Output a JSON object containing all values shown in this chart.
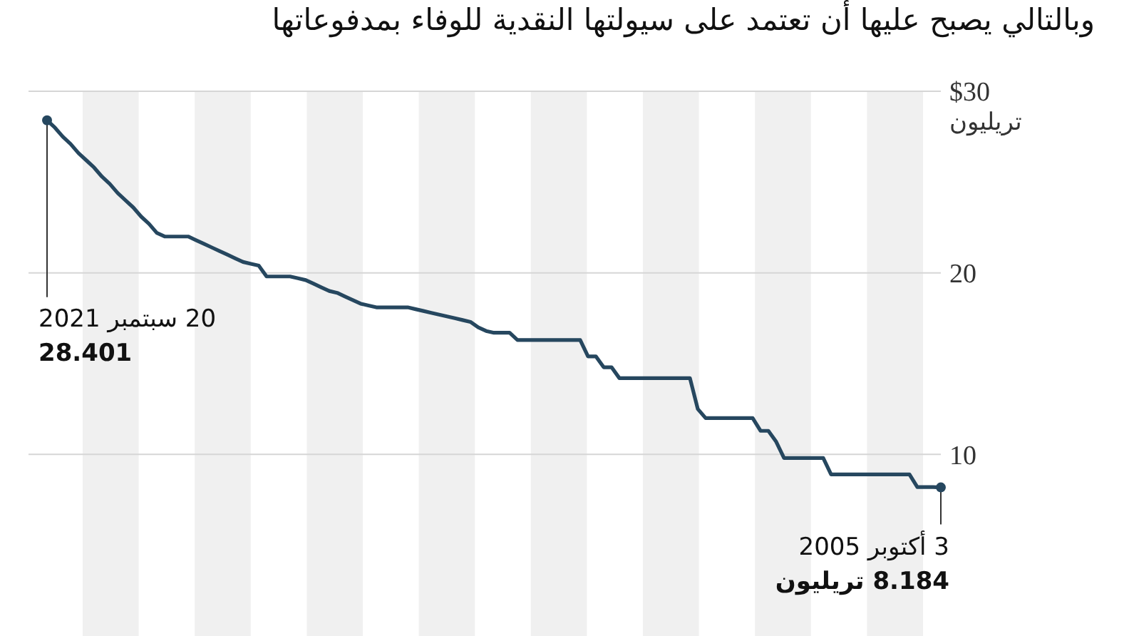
{
  "chart_data": {
    "type": "line",
    "title": "وبالتالي يصبح عليها أن تعتمد على سيولتها النقدية للوفاء بمدفوعاتها",
    "ylabel": "تريليون",
    "categories": [
      null,
      null,
      null,
      null,
      null,
      null,
      null,
      null,
      null,
      null,
      null,
      null,
      null,
      null,
      null,
      null,
      null,
      null,
      null,
      null,
      null,
      null,
      null,
      null,
      null,
      null,
      null,
      null,
      null,
      null,
      null,
      null,
      null,
      null,
      null,
      null,
      null,
      null,
      null,
      null,
      null,
      null,
      null,
      null,
      null,
      null,
      null,
      null,
      null,
      null,
      null,
      null,
      null,
      null,
      null,
      null,
      null,
      null,
      null,
      null,
      null,
      null,
      null,
      null,
      null,
      null,
      null,
      null,
      null,
      null,
      null,
      null,
      null,
      null,
      null,
      null,
      null,
      null,
      null,
      null,
      null,
      null,
      null,
      null,
      null,
      null,
      null,
      null,
      null,
      null,
      null,
      null,
      null,
      null,
      null,
      null,
      null,
      null,
      null,
      null,
      null,
      null,
      null,
      null,
      null,
      null,
      null,
      null,
      null,
      null,
      null,
      null,
      null,
      null,
      null
    ],
    "series": [
      {
        "color": "#26475f",
        "values": [
          28.401,
          28.0,
          27.5,
          27.1,
          26.6,
          26.2,
          25.8,
          25.3,
          24.9,
          24.4,
          24.0,
          23.6,
          23.1,
          22.7,
          22.2,
          22.0,
          22.0,
          22.0,
          22.0,
          21.8,
          21.6,
          21.4,
          21.2,
          21.0,
          20.8,
          20.6,
          20.5,
          20.4,
          19.8,
          19.8,
          19.8,
          19.8,
          19.7,
          19.6,
          19.4,
          19.2,
          19.0,
          18.9,
          18.7,
          18.5,
          18.3,
          18.2,
          18.1,
          18.1,
          18.1,
          18.1,
          18.1,
          18.0,
          17.9,
          17.8,
          17.7,
          17.6,
          17.5,
          17.4,
          17.3,
          17.0,
          16.8,
          16.7,
          16.7,
          16.7,
          16.3,
          16.3,
          16.3,
          16.3,
          16.3,
          16.3,
          16.3,
          16.3,
          16.3,
          15.4,
          15.4,
          14.8,
          14.8,
          14.2,
          14.2,
          14.2,
          14.2,
          14.2,
          14.2,
          14.2,
          14.2,
          14.2,
          14.2,
          12.5,
          12.0,
          12.0,
          12.0,
          12.0,
          12.0,
          12.0,
          12.0,
          11.3,
          11.3,
          10.7,
          9.8,
          9.8,
          9.8,
          9.8,
          9.8,
          9.8,
          8.9,
          8.9,
          8.9,
          8.9,
          8.9,
          8.9,
          8.9,
          8.9,
          8.9,
          8.9,
          8.9,
          8.2,
          8.2,
          8.2,
          8.184
        ]
      }
    ],
    "ylim": [
      0,
      30
    ],
    "yticks": [
      {
        "value": 30,
        "label": "$30"
      },
      20,
      10
    ],
    "grid": "y",
    "tick_labels": "y",
    "annotations": [
      "20 سبتمبر 2021",
      "28.401",
      "3 أكتوبر 2005",
      "8.184 تريليون"
    ]
  }
}
